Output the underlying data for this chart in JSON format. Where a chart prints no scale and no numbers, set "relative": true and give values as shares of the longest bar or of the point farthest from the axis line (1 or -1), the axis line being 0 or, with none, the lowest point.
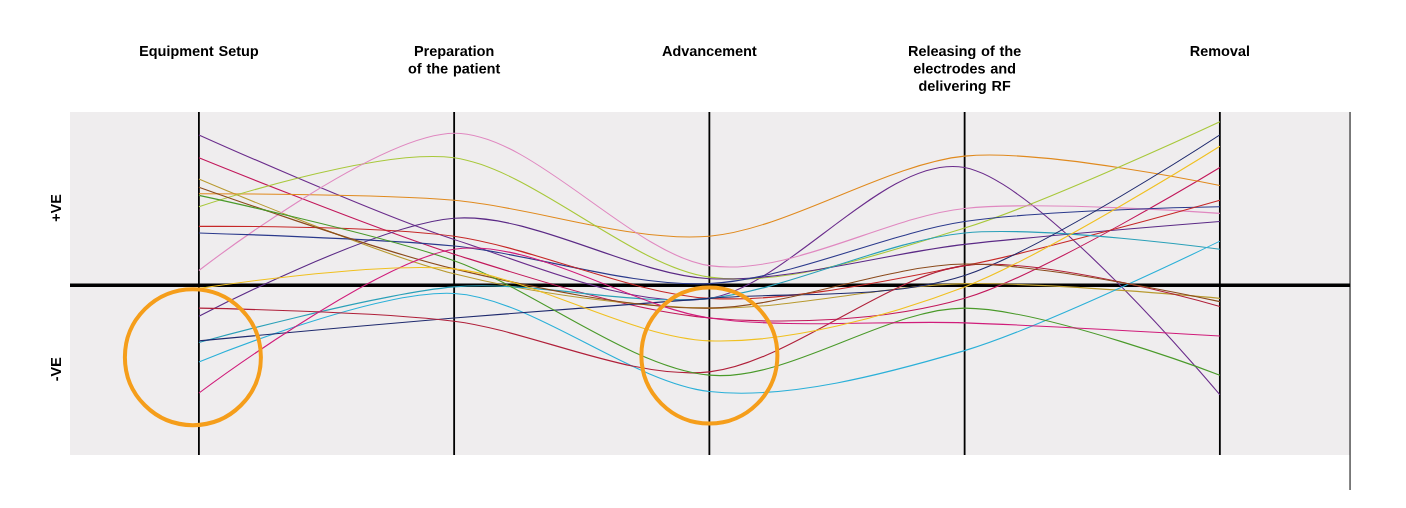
{
  "chart_data": {
    "type": "line",
    "relative": true,
    "grid": "x",
    "categories": [
      "Equipment Setup",
      "Preparation of the patient",
      "Advancement",
      "Releasing of the electrodes and delivering RF",
      "Removal"
    ],
    "annotations": [
      "+VE",
      "-VE"
    ],
    "series": [
      {
        "color": "#6b2d8c",
        "values": [
          0.92,
          0.28,
          -0.08,
          0.72,
          -0.67
        ]
      },
      {
        "color": "#c2185b",
        "values": [
          0.78,
          0.19,
          -0.2,
          -0.08,
          0.72
        ]
      },
      {
        "color": "#b89a30",
        "values": [
          0.65,
          0.07,
          -0.14,
          0.01,
          -0.08
        ]
      },
      {
        "color": "#e08a1e",
        "values": [
          0.56,
          0.52,
          0.3,
          0.79,
          0.61
        ]
      },
      {
        "color": "#a8c83a",
        "values": [
          0.48,
          0.78,
          0.05,
          0.35,
          1.0
        ]
      },
      {
        "color": "#e088c0",
        "values": [
          0.09,
          0.93,
          0.12,
          0.47,
          0.44
        ]
      },
      {
        "color": "#5b2a86",
        "values": [
          -0.19,
          0.41,
          0.04,
          0.25,
          0.39
        ]
      },
      {
        "color": "#2b3a8c",
        "values": [
          0.32,
          0.24,
          0.01,
          0.39,
          0.48
        ]
      },
      {
        "color": "#c62828",
        "values": [
          0.36,
          0.3,
          -0.08,
          0.12,
          0.52
        ]
      },
      {
        "color": "#2aa0b8",
        "values": [
          -0.35,
          -0.01,
          -0.08,
          0.32,
          0.22
        ]
      },
      {
        "color": "#2bb0d8",
        "values": [
          -0.47,
          -0.05,
          -0.65,
          -0.4,
          0.27
        ]
      },
      {
        "color": "#1f2a6e",
        "values": [
          -0.34,
          -0.2,
          -0.08,
          0.06,
          0.92
        ]
      },
      {
        "color": "#b0203a",
        "values": [
          -0.14,
          -0.22,
          -0.53,
          0.12,
          -0.13
        ]
      },
      {
        "color": "#8b4a1c",
        "values": [
          0.6,
          0.1,
          -0.14,
          0.13,
          -0.1
        ]
      },
      {
        "color": "#4a9a2a",
        "values": [
          0.55,
          0.15,
          -0.55,
          -0.14,
          -0.55
        ]
      },
      {
        "color": "#d01c7a",
        "values": [
          -0.66,
          0.22,
          -0.2,
          -0.23,
          -0.31
        ]
      },
      {
        "color": "#f0c020",
        "values": [
          -0.02,
          0.1,
          -0.34,
          -0.01,
          0.85
        ]
      }
    ]
  }
}
